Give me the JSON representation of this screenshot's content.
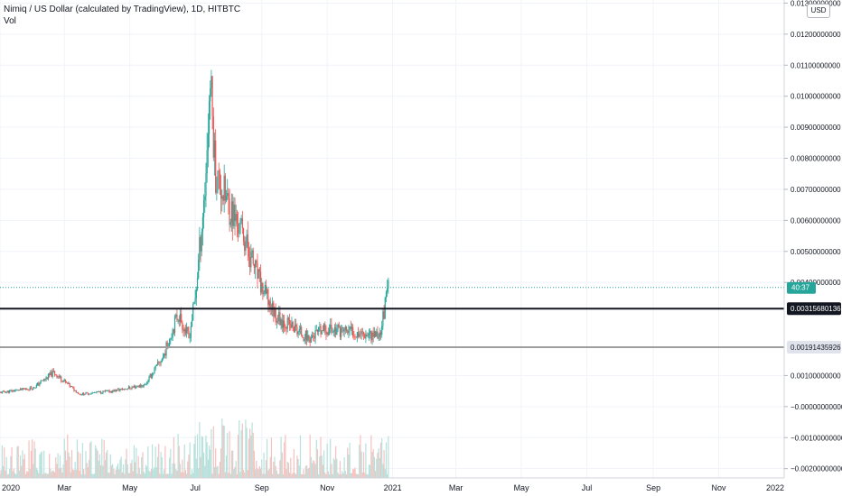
{
  "header": {
    "symbol_line": "Nimiq / US Dollar (calculated by TradingView), 1D, HITBTC",
    "volume_label": "Vol",
    "currency_button": "USD"
  },
  "colors": {
    "up": "#26a69a",
    "down": "#ef5350",
    "vol_up": "#b7e1dc",
    "vol_down": "#f6c1be",
    "grid": "#f0f3fa",
    "axis_text": "#131722",
    "resistance_line": "#131722",
    "support_line": "#9e9e9e",
    "last_price_line": "#26a69a"
  },
  "price_axis": {
    "labels": [
      "0.01300000000",
      "0.01200000000",
      "0.01100000000",
      "0.01000000000",
      "0.00900000000",
      "0.00800000000",
      "0.00700000000",
      "0.00600000000",
      "0.00500000000",
      "0.00400000000",
      "0.00100000000",
      "−0.00000000000",
      "−0.00100000000",
      "−0.00200000000"
    ]
  },
  "time_axis": {
    "labels": [
      "2020",
      "Mar",
      "May",
      "Jul",
      "Sep",
      "Nov",
      "2021",
      "Mar",
      "May",
      "Jul",
      "Sep",
      "Nov",
      "2022"
    ]
  },
  "price_badges": {
    "last_price_countdown": "40:37",
    "resistance": "0.00315680136",
    "support": "0.00191435926"
  },
  "chart_data": {
    "type": "candlestick",
    "x_range": [
      "2020-01-01",
      "2022-01-01"
    ],
    "y_range": [
      -0.0023,
      0.0131
    ],
    "y_ticks": [
      0.013,
      0.012,
      0.011,
      0.01,
      0.009,
      0.008,
      0.007,
      0.006,
      0.005,
      0.004,
      0.001,
      0.0,
      -0.001,
      -0.002
    ],
    "horizontal_lines": [
      {
        "value": 0.00315680136,
        "style": "thick-dark"
      },
      {
        "value": 0.00191435926,
        "style": "thick-grey"
      },
      {
        "value": 0.00384,
        "style": "dotted-last-price"
      }
    ],
    "price_path": [
      {
        "date": "2020-01-01",
        "close": 0.00045
      },
      {
        "date": "2020-02-01",
        "close": 0.0006
      },
      {
        "date": "2020-02-20",
        "close": 0.0011
      },
      {
        "date": "2020-03-15",
        "close": 0.0004
      },
      {
        "date": "2020-04-15",
        "close": 0.0005
      },
      {
        "date": "2020-05-15",
        "close": 0.0007
      },
      {
        "date": "2020-06-01",
        "close": 0.0016
      },
      {
        "date": "2020-06-15",
        "close": 0.003
      },
      {
        "date": "2020-06-25",
        "close": 0.0022
      },
      {
        "date": "2020-07-01",
        "close": 0.0035
      },
      {
        "date": "2020-07-10",
        "close": 0.007
      },
      {
        "date": "2020-07-15",
        "close": 0.0105
      },
      {
        "date": "2020-07-20",
        "close": 0.0075
      },
      {
        "date": "2020-08-01",
        "close": 0.0065
      },
      {
        "date": "2020-08-15",
        "close": 0.0055
      },
      {
        "date": "2020-09-01",
        "close": 0.0038
      },
      {
        "date": "2020-09-15",
        "close": 0.0029
      },
      {
        "date": "2020-10-15",
        "close": 0.0022
      },
      {
        "date": "2020-11-01",
        "close": 0.0025
      },
      {
        "date": "2020-12-01",
        "close": 0.0024
      },
      {
        "date": "2020-12-20",
        "close": 0.0023
      },
      {
        "date": "2020-12-28",
        "close": 0.00384
      }
    ]
  }
}
